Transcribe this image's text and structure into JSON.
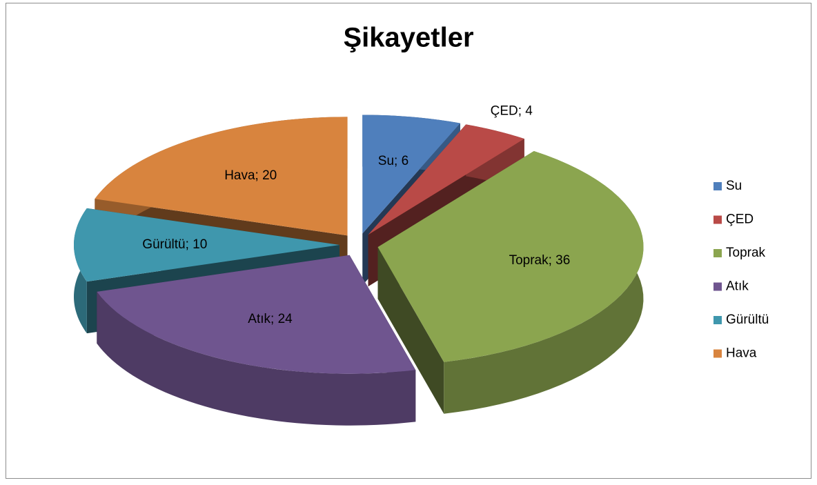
{
  "chart_data": {
    "type": "pie",
    "title": "Şikayetler",
    "categories": [
      "Su",
      "ÇED",
      "Toprak",
      "Atık",
      "Gürültü",
      "Hava"
    ],
    "values": [
      6,
      4,
      36,
      24,
      10,
      20
    ],
    "value_labels": [
      "Su; 6",
      "ÇED; 4",
      "Toprak; 36",
      "Atık; 24",
      "Gürültü; 10",
      "Hava; 20"
    ],
    "colors": [
      "#4f7fbc",
      "#b94a47",
      "#8ba54f",
      "#6f558f",
      "#3f97ad",
      "#d8843e"
    ],
    "legend": "right"
  }
}
